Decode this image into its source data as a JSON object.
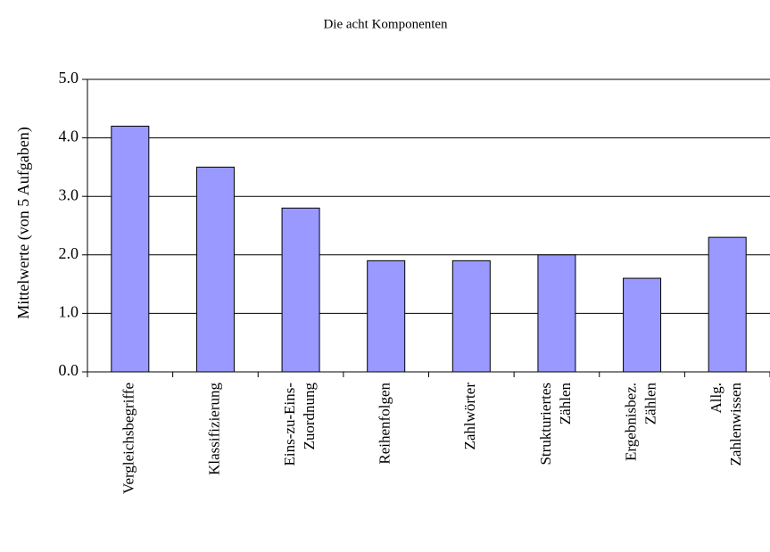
{
  "chart_data": {
    "type": "bar",
    "title": "Die acht Komponenten",
    "y_label": "Mittelwerte (von 5 Aufgaben)",
    "categories": [
      [
        "Vergleichsbegriffe"
      ],
      [
        "Klassifizierung"
      ],
      [
        "Eins-zu-Eins-",
        "Zuordnung"
      ],
      [
        "Reihenfolgen"
      ],
      [
        "Zahlwörter"
      ],
      [
        "Strukturiertes",
        "Zählen"
      ],
      [
        "Ergebnisbez.",
        "Zählen"
      ],
      [
        "Allg.",
        "Zahlenwissen"
      ]
    ],
    "values": [
      4.2,
      3.5,
      2.8,
      1.9,
      1.9,
      2.0,
      1.6,
      2.3
    ],
    "color": "#9999ff",
    "ylim": [
      0,
      5
    ],
    "yticks": [
      {
        "value": 0,
        "label": "0.0"
      },
      {
        "value": 1,
        "label": "1.0"
      },
      {
        "value": 2,
        "label": "2.0"
      },
      {
        "value": 3,
        "label": "3.0"
      },
      {
        "value": 4,
        "label": "4.0"
      },
      {
        "value": 5,
        "label": "5.0"
      }
    ],
    "grid": true
  }
}
